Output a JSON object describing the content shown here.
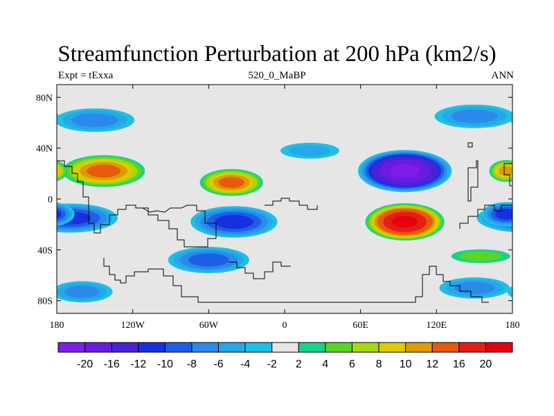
{
  "title": "Streamfunction Perturbation at 200 hPa (km2/s)",
  "subtitle_left": "Expt = tExxa",
  "subtitle_center": "520_0_MaBP",
  "subtitle_right": "ANN",
  "x_ticks": [
    {
      "label": "180",
      "lon": -180
    },
    {
      "label": "120W",
      "lon": -120
    },
    {
      "label": "60W",
      "lon": -60
    },
    {
      "label": "0",
      "lon": 0
    },
    {
      "label": "60E",
      "lon": 60
    },
    {
      "label": "120E",
      "lon": 120
    },
    {
      "label": "180",
      "lon": 180
    }
  ],
  "y_ticks": [
    {
      "label": "80N",
      "lat": 80
    },
    {
      "label": "40N",
      "lat": 40
    },
    {
      "label": "0",
      "lat": 0
    },
    {
      "label": "40S",
      "lat": -40
    },
    {
      "label": "80S",
      "lat": -80
    }
  ],
  "colorbar": {
    "labels": [
      "-20",
      "-16",
      "-12",
      "-10",
      "-8",
      "-6",
      "-4",
      "-2",
      "2",
      "4",
      "6",
      "8",
      "10",
      "12",
      "16",
      "20"
    ],
    "colors": [
      "#7e1ee6",
      "#6a1be0",
      "#4a22d8",
      "#1830e0",
      "#1c5fe6",
      "#2a8aea",
      "#25a8e8",
      "#1ec0e6",
      "#e6e6e6",
      "#18d28c",
      "#58d622",
      "#a6d80e",
      "#dccc00",
      "#dc9c00",
      "#e65a0a",
      "#e61c16",
      "#e60010"
    ]
  },
  "chart_data": {
    "type": "heatmap",
    "variable": "Streamfunction Perturbation at 200 hPa",
    "units": "km2/s",
    "lon_range": [
      -180,
      180
    ],
    "lat_range": [
      -90,
      90
    ],
    "contour_levels": [
      -20,
      -16,
      -12,
      -10,
      -8,
      -6,
      -4,
      -2,
      2,
      4,
      6,
      8,
      10,
      12,
      16,
      20
    ],
    "features": [
      {
        "lon": 95,
        "lat": 22,
        "value": -20
      },
      {
        "lon": 95,
        "lat": -18,
        "value": 20
      },
      {
        "lon": -143,
        "lat": 22,
        "value": 12
      },
      {
        "lon": -42,
        "lat": 13,
        "value": 12
      },
      {
        "lon": -170,
        "lat": -15,
        "value": -10
      },
      {
        "lon": -40,
        "lat": -18,
        "value": -10
      },
      {
        "lon": -60,
        "lat": -48,
        "value": -8
      },
      {
        "lon": -150,
        "lat": 62,
        "value": -6
      },
      {
        "lon": 150,
        "lat": 65,
        "value": -6
      },
      {
        "lon": 175,
        "lat": -12,
        "value": -10
      },
      {
        "lon": -160,
        "lat": -73,
        "value": -6
      },
      {
        "lon": 150,
        "lat": -70,
        "value": -6
      },
      {
        "lon": 175,
        "lat": 22,
        "value": 10
      },
      {
        "lon": 20,
        "lat": 38,
        "value": -4
      },
      {
        "lon": 155,
        "lat": -45,
        "value": 4
      }
    ]
  }
}
